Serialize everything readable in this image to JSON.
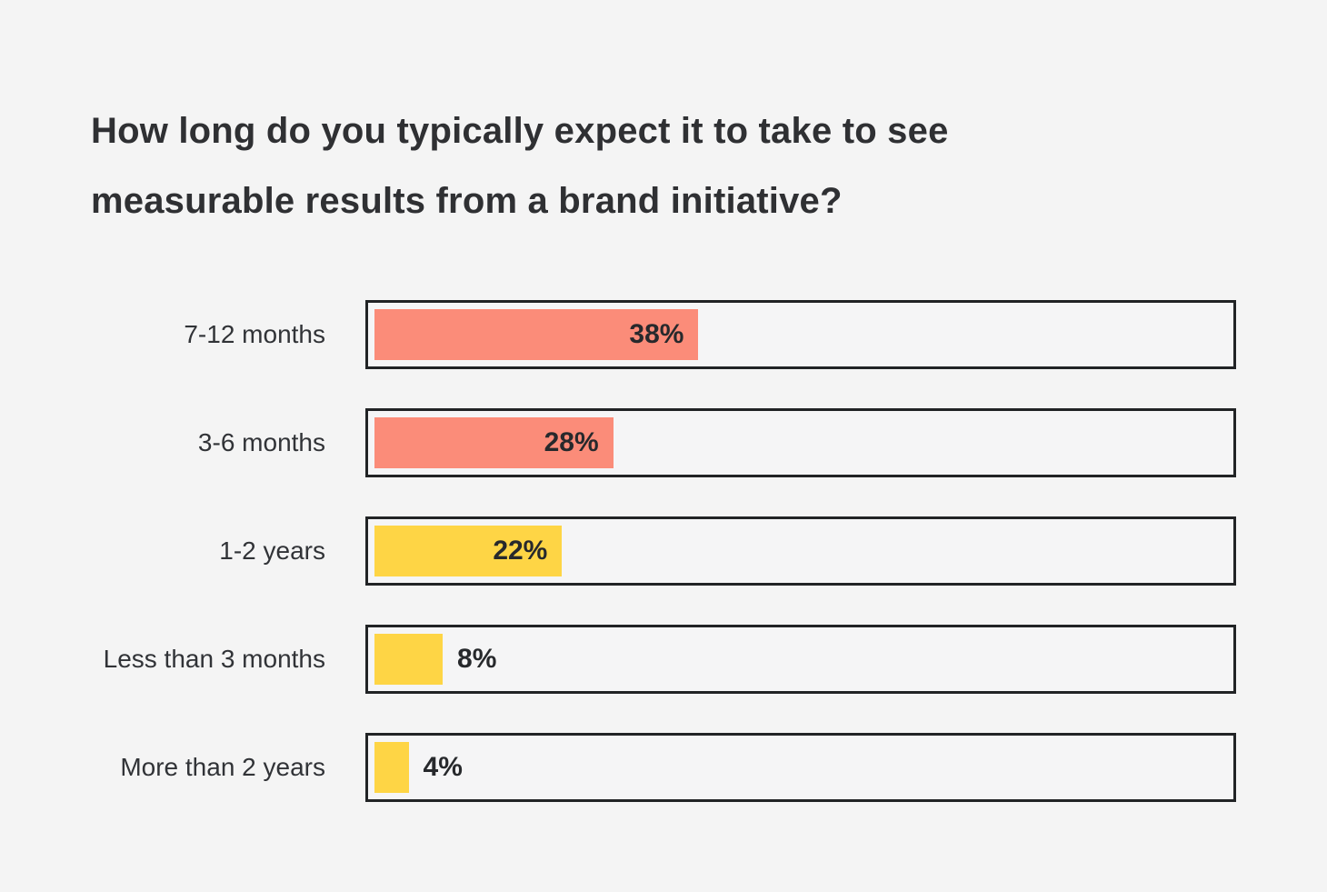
{
  "page": {
    "background_color": "#F4F4F4",
    "title_lines": [
      "How long do you typically expect it to take to see",
      "measurable results from a brand initiative?"
    ]
  },
  "chart_data": {
    "type": "bar",
    "orientation": "horizontal",
    "title": "How long do you typically expect it to take to see measurable results from a brand initiative?",
    "categories": [
      "7-12 months",
      "3-6 months",
      "1-2 years",
      "Less than 3 months",
      "More than 2 years"
    ],
    "values": [
      38,
      28,
      22,
      8,
      4
    ],
    "value_labels": [
      "38%",
      "28%",
      "22%",
      "8%",
      "4%"
    ],
    "value_label_positions": [
      "inside",
      "inside",
      "inside",
      "outside",
      "outside"
    ],
    "bar_colors": [
      "#FB8C79",
      "#FB8C79",
      "#FED545",
      "#FED545",
      "#FED545"
    ],
    "xlim": [
      0,
      100
    ],
    "grid": false,
    "legend": false,
    "track_border_color": "#212325",
    "text_color": "#2F3033",
    "value_text_color": "#27292C"
  }
}
